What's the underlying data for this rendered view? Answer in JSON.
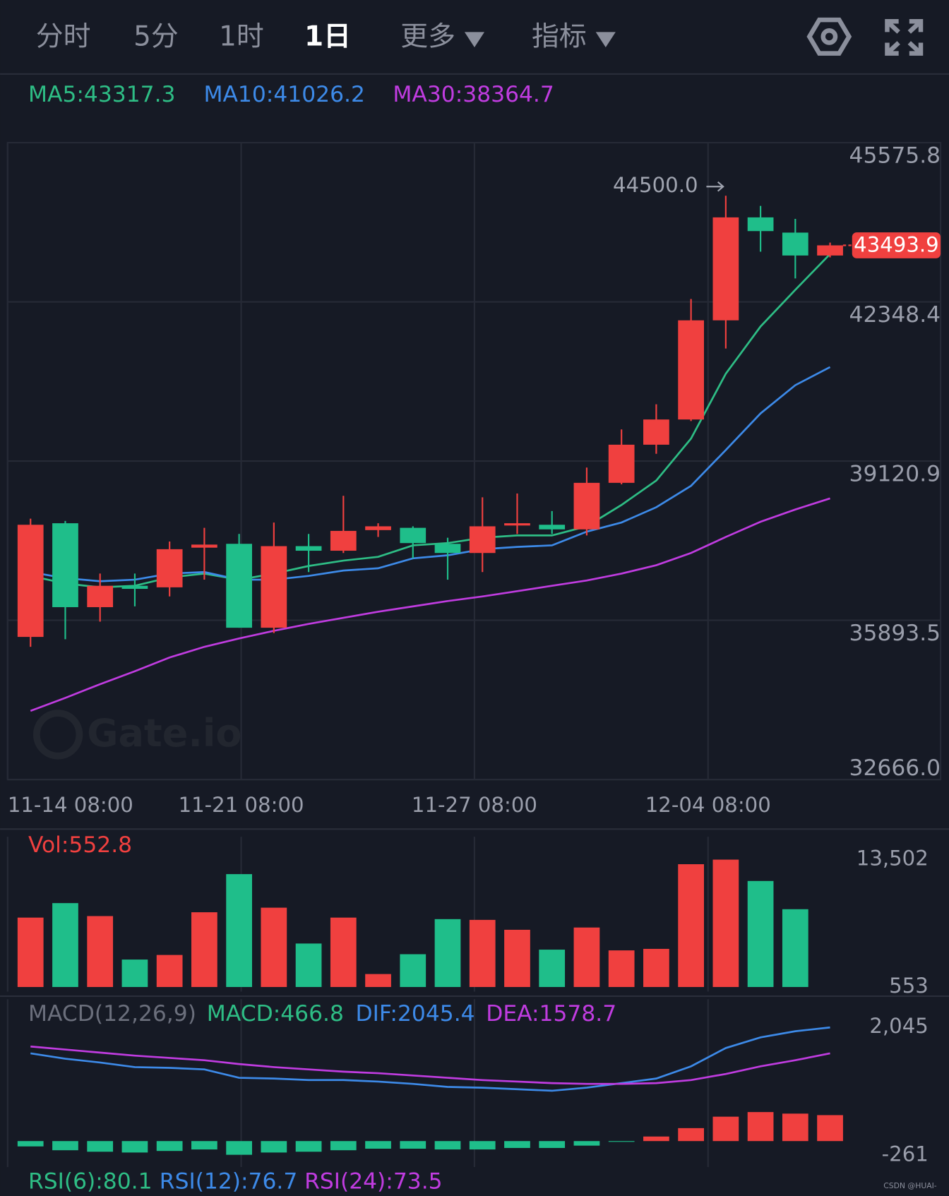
{
  "tabs": [
    {
      "label": "分时"
    },
    {
      "label": "5分"
    },
    {
      "label": "1时"
    },
    {
      "label": "1日",
      "active": true
    },
    {
      "label": "更多",
      "menu": true
    },
    {
      "label": "指标",
      "menu": true
    }
  ],
  "chart_data": [
    {
      "type": "candlestick",
      "open": [
        35557,
        37861,
        36160,
        36593,
        36562,
        37366,
        37444,
        35743,
        37397,
        37304,
        37722,
        37768,
        37444,
        37258,
        37815,
        37830,
        37737,
        38680,
        39453,
        39964,
        41974,
        44061,
        43752,
        43288
      ],
      "high": [
        37954,
        37907,
        36841,
        36841,
        37490,
        37768,
        37644,
        37876,
        37644,
        38418,
        37861,
        37799,
        37567,
        38387,
        38464,
        38108,
        38990,
        39763,
        40273,
        42406,
        44500,
        44293,
        44030,
        43550
      ],
      "low": [
        35356,
        35511,
        35866,
        36176,
        36377,
        36717,
        35743,
        35635,
        36871,
        37258,
        37583,
        37150,
        36717,
        36871,
        37644,
        37644,
        37614,
        38649,
        39268,
        39933,
        41402,
        43365,
        42824,
        43250
      ],
      "close": [
        37830,
        36160,
        36593,
        36531,
        37335,
        37428,
        35743,
        37397,
        37304,
        37706,
        37799,
        37459,
        37258,
        37799,
        37861,
        37737,
        38680,
        39453,
        39964,
        41974,
        44061,
        43783,
        43288,
        43493.9
      ],
      "up_color": "#f0403f",
      "down_color": "#1fbe8a",
      "series": [
        {
          "name": "MA5:43317.3",
          "color": "#2ebd85",
          "values": [
            36794,
            36640,
            36562,
            36593,
            36763,
            36841,
            36717,
            36841,
            36995,
            37103,
            37181,
            37413,
            37459,
            37567,
            37614,
            37614,
            37799,
            38232,
            38727,
            39577,
            40891,
            41850,
            42592,
            43317.3
          ]
        },
        {
          "name": "MA10:41026.2",
          "color": "#3d8ae8",
          "values": [
            36871,
            36748,
            36686,
            36717,
            36841,
            36871,
            36717,
            36717,
            36794,
            36902,
            36949,
            37150,
            37212,
            37335,
            37382,
            37413,
            37691,
            37876,
            38186,
            38619,
            39345,
            40087,
            40659,
            41026.2
          ]
        },
        {
          "name": "MA30:38364.7",
          "color": "#c03ce0",
          "values": [
            34058,
            34320,
            34599,
            34862,
            35140,
            35356,
            35526,
            35681,
            35820,
            35944,
            36067,
            36176,
            36284,
            36377,
            36485,
            36593,
            36701,
            36841,
            37011,
            37258,
            37583,
            37892,
            38139,
            38364.7
          ]
        }
      ],
      "ylim": [
        32666,
        45575.8
      ],
      "yticks": [
        45575.8,
        42348.4,
        39120.9,
        35893.5,
        {
          "value": 32666,
          "label": "32666.0"
        }
      ],
      "xticks": [
        {
          "value": -0.66,
          "label": "11-14 08:00"
        },
        {
          "value": 6.06,
          "label": "11-21 08:00"
        },
        {
          "value": 12.77,
          "label": "11-27 08:00"
        },
        {
          "value": 19.49,
          "label": "12-04 08:00"
        }
      ],
      "grid": true,
      "annotations": [
        {
          "value": 44500,
          "label": "44500.0"
        }
      ],
      "watermark": "Gate.io"
    },
    {
      "type": "bar",
      "series": [
        {
          "name": "Vol:552.8",
          "color": "#f0403f",
          "values": [
            7609,
            9082,
            7764,
            3344,
            3810,
            8152,
            12029,
            8617,
            4973,
            7609,
            1871,
            3887,
            7454,
            7377,
            6369,
            4352,
            6601,
            4275,
            4430,
            13037,
            13502,
            11331,
            8462,
            552.8
          ],
          "colors": [
            "#f0403f",
            "#1fbe8a",
            "#f0403f",
            "#1fbe8a",
            "#f0403f",
            "#f0403f",
            "#1fbe8a",
            "#f0403f",
            "#1fbe8a",
            "#f0403f",
            "#f0403f",
            "#1fbe8a",
            "#1fbe8a",
            "#f0403f",
            "#f0403f",
            "#1fbe8a",
            "#f0403f",
            "#f0403f",
            "#f0403f",
            "#f0403f",
            "#f0403f",
            "#1fbe8a",
            "#1fbe8a",
            "#f0403f"
          ]
        }
      ],
      "ylim": [
        553,
        13502
      ],
      "yticks": [
        {
          "value": 13502,
          "label": "13,502"
        },
        553
      ]
    },
    {
      "type": "macd",
      "title": "MACD(12,26,9)",
      "series": [
        {
          "name": "MACD:466.8",
          "type": "bar",
          "color": "#2ebd85",
          "up_color": "#f0403f",
          "down_color": "#1fbe8a",
          "values": [
            -96,
            -165,
            -192,
            -206,
            -178,
            -151,
            -247,
            -206,
            -192,
            -165,
            -137,
            -137,
            -151,
            -151,
            -124,
            -124,
            -82,
            -14,
            82,
            233,
            439,
            522,
            494,
            466.8
          ]
        },
        {
          "name": "DIF:2045.4",
          "color": "#3d8ae8",
          "values": [
            1578,
            1482,
            1414,
            1331,
            1317,
            1290,
            1139,
            1125,
            1098,
            1098,
            1071,
            1029,
            975,
            961,
            933,
            906,
            961,
            1043,
            1125,
            1345,
            1674,
            1867,
            1976,
            2045.4
          ]
        },
        {
          "name": "DEA:1578.7",
          "color": "#c03ce0",
          "values": [
            1702,
            1647,
            1592,
            1537,
            1496,
            1455,
            1386,
            1331,
            1290,
            1249,
            1222,
            1180,
            1139,
            1098,
            1071,
            1043,
            1029,
            1029,
            1043,
            1098,
            1208,
            1345,
            1455,
            1578.7
          ]
        }
      ],
      "ylim": [
        -261,
        2045
      ],
      "yticks": [
        {
          "value": 2045,
          "label": "2,045"
        },
        -261
      ]
    }
  ],
  "rsi_legend": [
    {
      "name": "RSI(6):80.1",
      "color": "#2ebd85"
    },
    {
      "name": "RSI(12):76.7",
      "color": "#3d8ae8"
    },
    {
      "name": "RSI(24):73.5",
      "color": "#c03ce0"
    }
  ],
  "credit": "CSDN @HUAI-"
}
